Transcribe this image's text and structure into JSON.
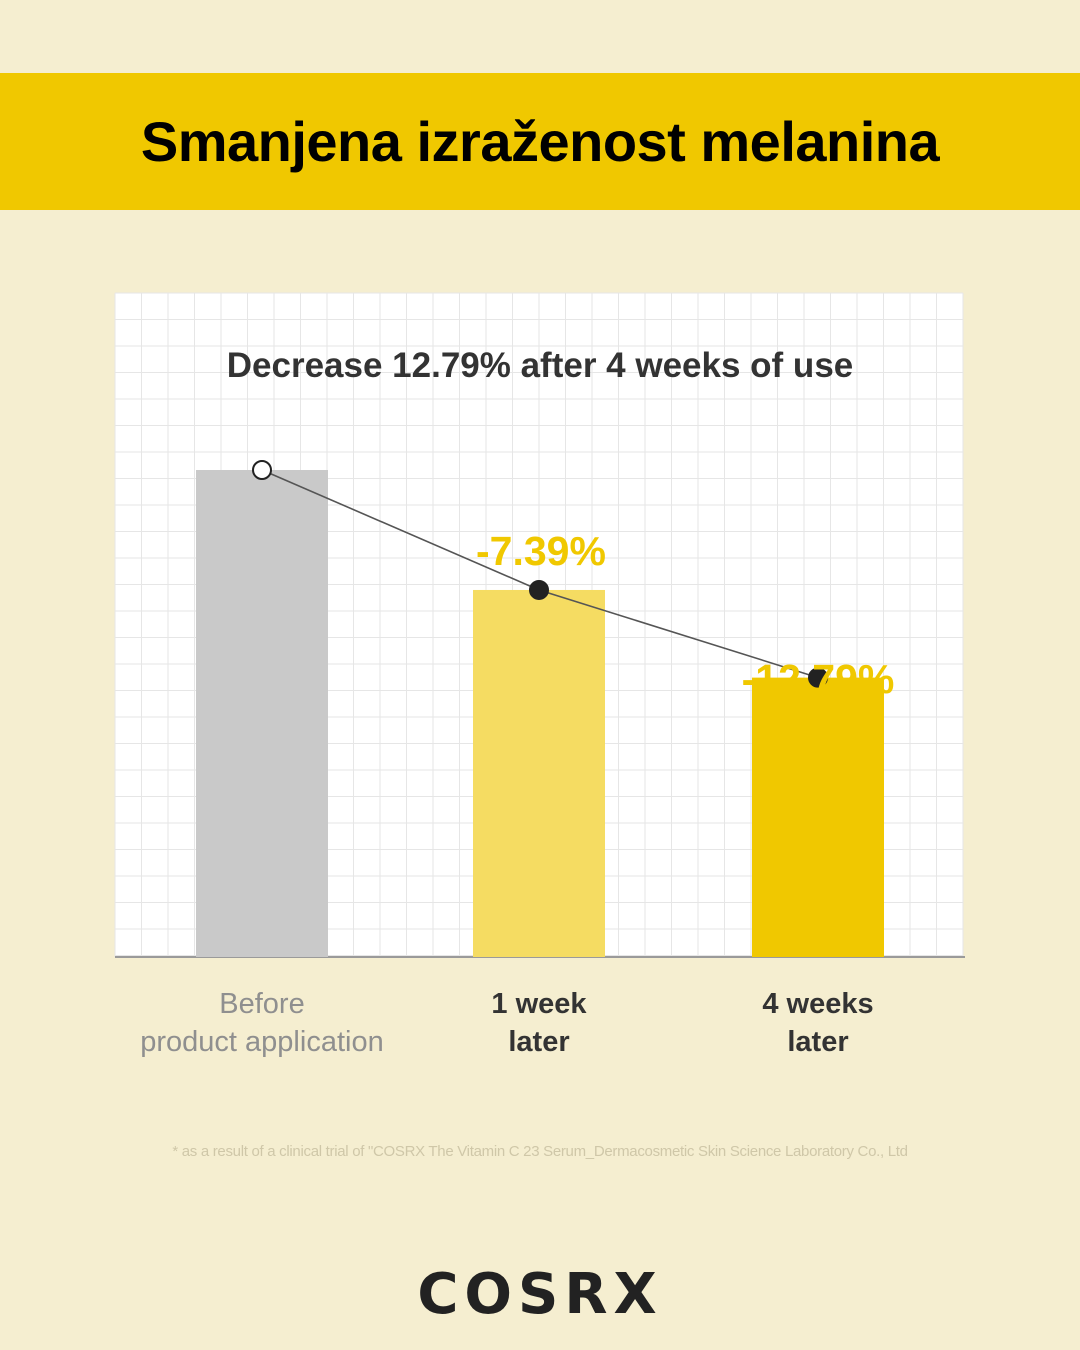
{
  "banner": {
    "title": "Smanjena izraženost melanina"
  },
  "chart_data": {
    "type": "bar",
    "title": "Decrease 12.79% after 4 weeks of use",
    "categories": [
      [
        "Before",
        "product application"
      ],
      [
        "1 week",
        "later"
      ],
      [
        "4 weeks",
        "later"
      ]
    ],
    "values": [
      100,
      92.61,
      87.21
    ],
    "data_labels": [
      "",
      "-7.39%",
      "-12.79%"
    ],
    "bar_colors": [
      "#c9c9c9",
      "#f5dc62",
      "#f0c800"
    ],
    "label_color": "#f0c800",
    "ylim": [
      70,
      100
    ],
    "grid": true,
    "line_overlay": true
  },
  "footnote": "* as a result of a clinical trial of \"COSRX The Vitamin C 23 Serum_Dermacosmetic Skin Science Laboratory Co., Ltd",
  "brand": {
    "logo": "COSRX"
  }
}
